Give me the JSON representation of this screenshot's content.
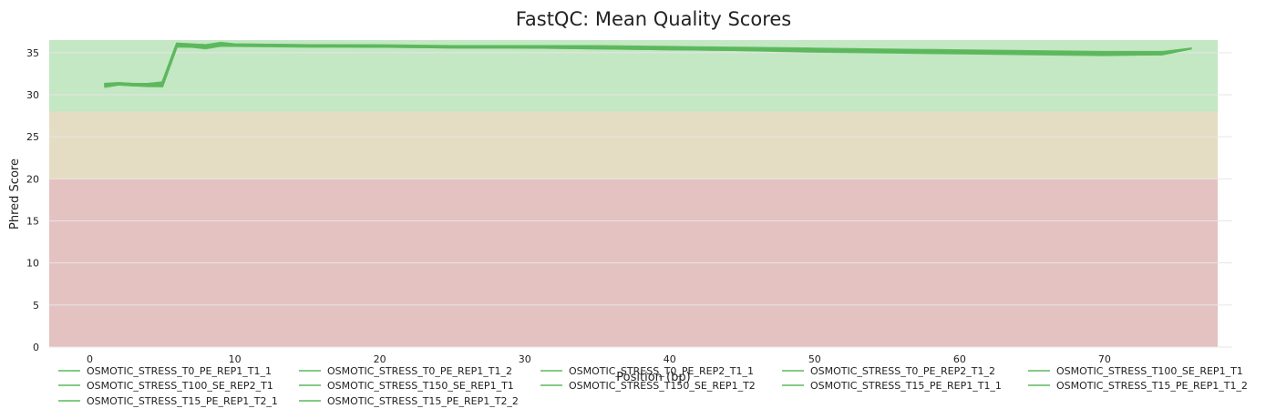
{
  "chart_data": {
    "type": "line",
    "title": "FastQC: Mean Quality Scores",
    "xlabel": "Position (bp)",
    "ylabel": "Phred Score",
    "xlim": [
      -2.8,
      77.8
    ],
    "ylim": [
      0,
      36.5
    ],
    "xticks": [
      0,
      10,
      20,
      30,
      40,
      50,
      60,
      70
    ],
    "yticks": [
      0,
      5,
      10,
      15,
      20,
      25,
      30,
      35
    ],
    "grid": true,
    "legend_position": "bottom",
    "bands": [
      {
        "from": 0,
        "to": 20,
        "color": "#e4c2c1"
      },
      {
        "from": 20,
        "to": 28,
        "color": "#e5dcc4"
      },
      {
        "from": 28,
        "to": 36.5,
        "color": "#c4e7c4"
      }
    ],
    "line_color": "#5cb85c",
    "x": [
      1,
      2,
      3,
      4,
      5,
      6,
      7,
      8,
      9,
      10,
      15,
      20,
      25,
      30,
      35,
      40,
      45,
      50,
      55,
      60,
      65,
      70,
      74,
      76
    ],
    "series": [
      {
        "name": "OSMOTIC_STRESS_T0_PE_REP1_T1_1",
        "values": [
          31.3,
          31.3,
          31.2,
          31.2,
          31.2,
          36.0,
          35.9,
          35.8,
          36.1,
          35.9,
          35.8,
          35.8,
          35.7,
          35.7,
          35.6,
          35.5,
          35.4,
          35.3,
          35.2,
          35.1,
          35.0,
          34.9,
          34.9,
          35.5
        ]
      },
      {
        "name": "OSMOTIC_STRESS_T0_PE_REP1_T1_2",
        "values": [
          31.0,
          31.3,
          31.2,
          31.1,
          31.0,
          35.8,
          35.7,
          35.6,
          35.9,
          35.8,
          35.8,
          35.8,
          35.7,
          35.7,
          35.6,
          35.5,
          35.4,
          35.3,
          35.2,
          35.0,
          34.9,
          34.8,
          34.8,
          35.5
        ]
      },
      {
        "name": "OSMOTIC_STRESS_T0_PE_REP2_T1_1",
        "values": [
          31.3,
          31.4,
          31.3,
          31.3,
          31.4,
          36.1,
          36.0,
          35.9,
          36.1,
          36.0,
          35.9,
          35.8,
          35.8,
          35.8,
          35.7,
          35.6,
          35.5,
          35.4,
          35.3,
          35.2,
          35.1,
          35.0,
          35.0,
          35.5
        ]
      },
      {
        "name": "OSMOTIC_STRESS_T0_PE_REP2_T1_2",
        "values": [
          30.9,
          31.2,
          31.1,
          31.0,
          31.0,
          35.7,
          35.7,
          35.5,
          35.8,
          35.8,
          35.8,
          35.7,
          35.6,
          35.6,
          35.5,
          35.4,
          35.3,
          35.1,
          35.0,
          34.9,
          34.8,
          34.7,
          34.8,
          35.5
        ]
      },
      {
        "name": "OSMOTIC_STRESS_T100_SE_REP1_T1",
        "values": [
          31.2,
          31.3,
          31.2,
          31.2,
          31.3,
          35.9,
          35.8,
          35.7,
          36.0,
          35.9,
          35.8,
          35.8,
          35.7,
          35.7,
          35.6,
          35.5,
          35.4,
          35.3,
          35.2,
          35.1,
          35.0,
          34.9,
          34.9,
          35.5
        ]
      },
      {
        "name": "OSMOTIC_STRESS_T100_SE_REP2_T1",
        "values": [
          31.1,
          31.2,
          31.2,
          31.1,
          31.1,
          35.9,
          35.8,
          35.7,
          35.9,
          35.8,
          35.8,
          35.7,
          35.7,
          35.6,
          35.6,
          35.5,
          35.4,
          35.2,
          35.1,
          35.0,
          34.9,
          34.8,
          34.8,
          35.5
        ]
      },
      {
        "name": "OSMOTIC_STRESS_T150_SE_REP1_T1",
        "values": [
          31.3,
          31.4,
          31.3,
          31.3,
          31.5,
          36.1,
          36.0,
          35.9,
          36.2,
          36.0,
          35.9,
          35.9,
          35.8,
          35.8,
          35.8,
          35.7,
          35.6,
          35.5,
          35.4,
          35.3,
          35.2,
          35.1,
          35.1,
          35.5
        ]
      },
      {
        "name": "OSMOTIC_STRESS_T150_SE_REP1_T2",
        "values": [
          31.2,
          31.3,
          31.2,
          31.2,
          31.3,
          36.0,
          35.9,
          35.8,
          36.0,
          35.9,
          35.9,
          35.8,
          35.8,
          35.8,
          35.7,
          35.6,
          35.5,
          35.4,
          35.3,
          35.2,
          35.1,
          35.0,
          35.0,
          35.5
        ]
      },
      {
        "name": "OSMOTIC_STRESS_T15_PE_REP1_T1_1",
        "values": [
          31.2,
          31.3,
          31.2,
          31.2,
          31.2,
          35.9,
          35.8,
          35.7,
          36.0,
          35.9,
          35.8,
          35.8,
          35.7,
          35.7,
          35.6,
          35.5,
          35.4,
          35.3,
          35.2,
          35.1,
          35.0,
          34.9,
          34.9,
          35.5
        ]
      },
      {
        "name": "OSMOTIC_STRESS_T15_PE_REP1_T1_2",
        "values": [
          31.0,
          31.2,
          31.1,
          31.1,
          31.0,
          35.8,
          35.7,
          35.6,
          35.9,
          35.8,
          35.7,
          35.7,
          35.6,
          35.6,
          35.5,
          35.4,
          35.3,
          35.2,
          35.1,
          35.0,
          34.9,
          34.8,
          34.8,
          35.5
        ]
      },
      {
        "name": "OSMOTIC_STRESS_T15_PE_REP1_T2_1",
        "values": [
          31.2,
          31.3,
          31.3,
          31.2,
          31.3,
          36.0,
          35.9,
          35.8,
          36.0,
          35.9,
          35.9,
          35.8,
          35.8,
          35.7,
          35.7,
          35.6,
          35.5,
          35.4,
          35.3,
          35.2,
          35.1,
          35.0,
          35.0,
          35.5
        ]
      },
      {
        "name": "OSMOTIC_STRESS_T15_PE_REP1_T2_2",
        "values": [
          31.1,
          31.2,
          31.2,
          31.1,
          31.1,
          35.9,
          35.8,
          35.7,
          35.9,
          35.8,
          35.8,
          35.7,
          35.7,
          35.6,
          35.6,
          35.5,
          35.4,
          35.2,
          35.1,
          35.0,
          34.9,
          34.8,
          34.9,
          35.5
        ]
      }
    ]
  }
}
